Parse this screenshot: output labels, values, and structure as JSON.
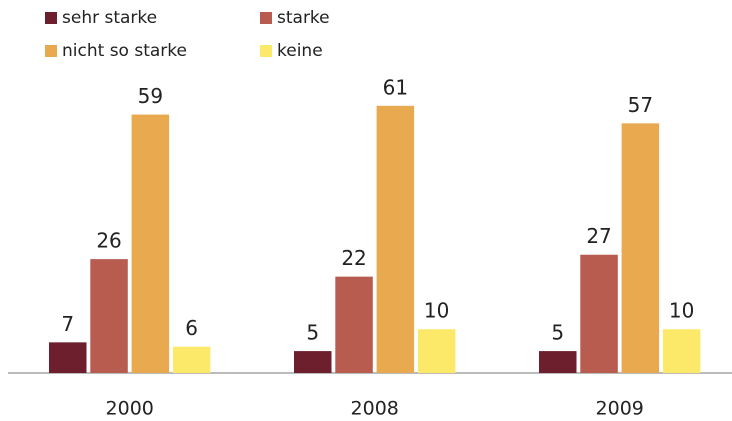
{
  "chart_data": {
    "type": "bar",
    "categories": [
      "2000",
      "2008",
      "2009"
    ],
    "series": [
      {
        "name": "sehr starke",
        "color": "#6e1f2e",
        "values": [
          7,
          5,
          5
        ]
      },
      {
        "name": "starke",
        "color": "#b85c50",
        "values": [
          26,
          22,
          27
        ]
      },
      {
        "name": "nicht so starke",
        "color": "#e8a94f",
        "values": [
          59,
          61,
          57
        ]
      },
      {
        "name": "keine",
        "color": "#fce96a",
        "values": [
          6,
          10,
          10
        ]
      }
    ]
  }
}
